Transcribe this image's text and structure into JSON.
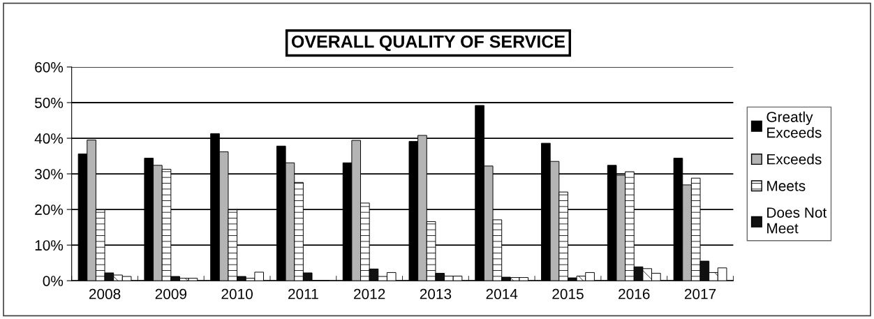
{
  "chart_data": {
    "type": "bar",
    "title": "OVERALL QUALITY OF SERVICE",
    "categories": [
      "2008",
      "2009",
      "2010",
      "2011",
      "2012",
      "2013",
      "2014",
      "2015",
      "2016",
      "2017"
    ],
    "series": [
      {
        "name": "Greatly Exceeds",
        "color": "#000000",
        "values": [
          35.6,
          34.4,
          41.3,
          37.8,
          33.1,
          39.1,
          49.2,
          38.6,
          32.4,
          34.4
        ]
      },
      {
        "name": "Exceeds",
        "color": "#b4b4b4",
        "values": [
          39.5,
          32.4,
          36.2,
          33.1,
          39.4,
          40.8,
          32.2,
          33.5,
          29.6,
          26.9
        ]
      },
      {
        "name": "Meets",
        "color": "#000000",
        "values": [
          19.9,
          31.3,
          19.9,
          27.6,
          21.8,
          16.6,
          17.1,
          24.9,
          30.6,
          28.8
        ]
      },
      {
        "name": "Does Not Meet",
        "color": "#111111",
        "values": [
          2.2,
          1.2,
          1.2,
          2.2,
          3.3,
          2.1,
          1.0,
          0.8,
          3.9,
          5.5
        ]
      },
      {
        "color": "#000000",
        "values": [
          1.6,
          0.7,
          0.7,
          0,
          1.2,
          1.3,
          0.9,
          1.3,
          3.4,
          2.3
        ]
      },
      {
        "color": "#ffffff",
        "values": [
          1.2,
          0.7,
          2.4,
          0,
          2.3,
          1.3,
          0.9,
          2.3,
          2.1,
          3.6
        ]
      }
    ],
    "ylim": [
      0,
      60
    ],
    "yticks": [
      {
        "value": 0,
        "label": "0%"
      },
      {
        "value": 10,
        "label": "10%"
      },
      {
        "value": 20,
        "label": "20%"
      },
      {
        "value": 30,
        "label": "30%"
      },
      {
        "value": 40,
        "label": "40%"
      },
      {
        "value": 50,
        "label": "50%"
      },
      {
        "value": 60,
        "label": "60%"
      }
    ],
    "grid": "y",
    "legend": "right"
  }
}
